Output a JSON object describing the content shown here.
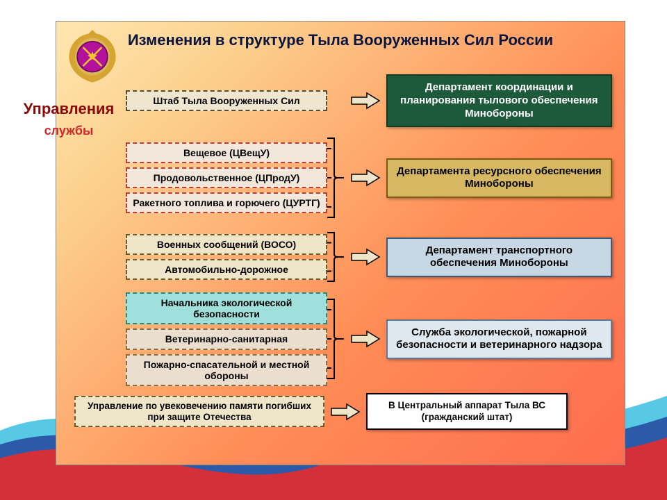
{
  "title": "Изменения в структуре Тыла Вооруженных Сил России",
  "sidebar": {
    "label1": "Управления",
    "label2": "службы"
  },
  "emblem": {
    "outer_color": "#d4a02a",
    "circle_color": "#b3119c",
    "star_color": "#f4c430"
  },
  "arrow": {
    "fill": "#efe6ca",
    "stroke": "#000000",
    "width": 44,
    "height": 26
  },
  "groups": [
    {
      "left": [
        {
          "text": "Штаб Тыла Вооруженных Сил",
          "bg": "#efe6d0",
          "border": "#5a4a2a"
        }
      ],
      "right": {
        "text": "Департамент координации и планирования тылового обеспечения Минобороны",
        "bg": "#1d5a3b",
        "fg": "#ffffff",
        "border": "#0e3a24"
      }
    },
    {
      "left": [
        {
          "text": "Вещевое (ЦВещУ)",
          "bg": "#f1e7da",
          "border": "#c43a2a"
        },
        {
          "text": "Продовольственное (ЦПродУ)",
          "bg": "#f1e7da",
          "border": "#c43a2a"
        },
        {
          "text": "Ракетного топлива и горючего (ЦУРТГ)",
          "bg": "#f1e7da",
          "border": "#c43a2a"
        }
      ],
      "right": {
        "text": "Департамента ресурсного обеспечения Минобороны",
        "bg": "#d7b862",
        "fg": "#000000",
        "border": "#7a5a10"
      }
    },
    {
      "left": [
        {
          "text": "Военных сообщений (ВОСО)",
          "bg": "#efe6ca",
          "border": "#6a5a2a"
        },
        {
          "text": "Автомобильно-дорожное",
          "bg": "#efe6ca",
          "border": "#6a5a2a"
        }
      ],
      "right": {
        "text": "Департамент транспортного обеспечения Минобороны",
        "bg": "#c7d8e4",
        "fg": "#000000",
        "border": "#3a5a7a"
      }
    },
    {
      "left": [
        {
          "text": "Начальника экологической безопасности",
          "bg": "#9fe0dc",
          "border": "#2a8a7a"
        },
        {
          "text": "Ветеринарно-санитарная",
          "bg": "#eadfce",
          "border": "#8a6a3a"
        },
        {
          "text": "Пожарно-спасательной и местной обороны",
          "bg": "#eadfce",
          "border": "#8a6a3a"
        }
      ],
      "right": {
        "text": "Служба экологической, пожарной безопасности и ветеринарного надзора",
        "bg": "#dfe8ee",
        "fg": "#000000",
        "border": "#5a7a9a"
      }
    }
  ],
  "bottom": {
    "left": {
      "text": "Управление по увековечению памяти погибших при защите Отечества",
      "bg": "#efe6ca",
      "border": "#6a5a2a"
    },
    "right": {
      "text": "В Центральный аппарат Тыла ВС (гражданский штат)",
      "bg": "#ffffff",
      "fg": "#000000",
      "border": "#000000"
    }
  },
  "wave": {
    "red": "#d5303a",
    "blue": "#2a5aa8",
    "cyan": "#3ac0e0"
  }
}
